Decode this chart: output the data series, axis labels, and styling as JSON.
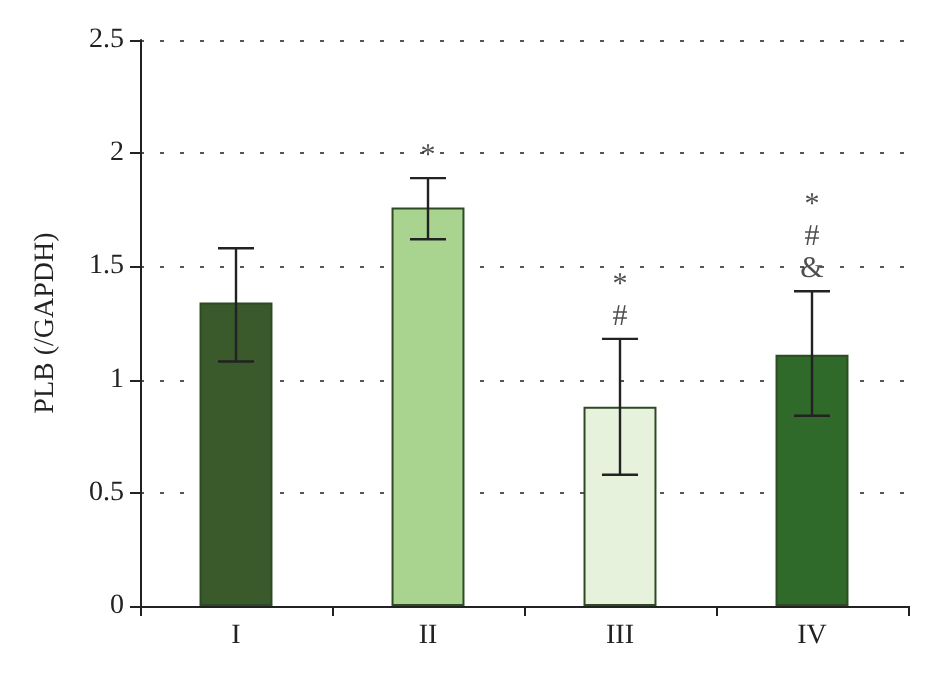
{
  "chart_data": {
    "type": "bar",
    "ylabel": "PLB (/GAPDH)",
    "categories": [
      "I",
      "II",
      "III",
      "IV"
    ],
    "values": [
      1.34,
      1.76,
      0.88,
      1.11
    ],
    "colors": [
      "#3a5a2c",
      "#a8d490",
      "#e6f2dc",
      "#2f6a2a"
    ],
    "errors": [
      [
        1.08,
        1.58
      ],
      [
        1.62,
        1.89
      ],
      [
        0.58,
        1.18
      ],
      [
        0.84,
        1.39
      ]
    ],
    "ylim": [
      0,
      2.5
    ],
    "yticks": [
      0,
      0.5,
      1,
      1.5,
      2,
      2.5
    ],
    "grid": "y",
    "value_labels": [
      null,
      "*",
      "*\n#",
      "*\n#\n&"
    ]
  }
}
